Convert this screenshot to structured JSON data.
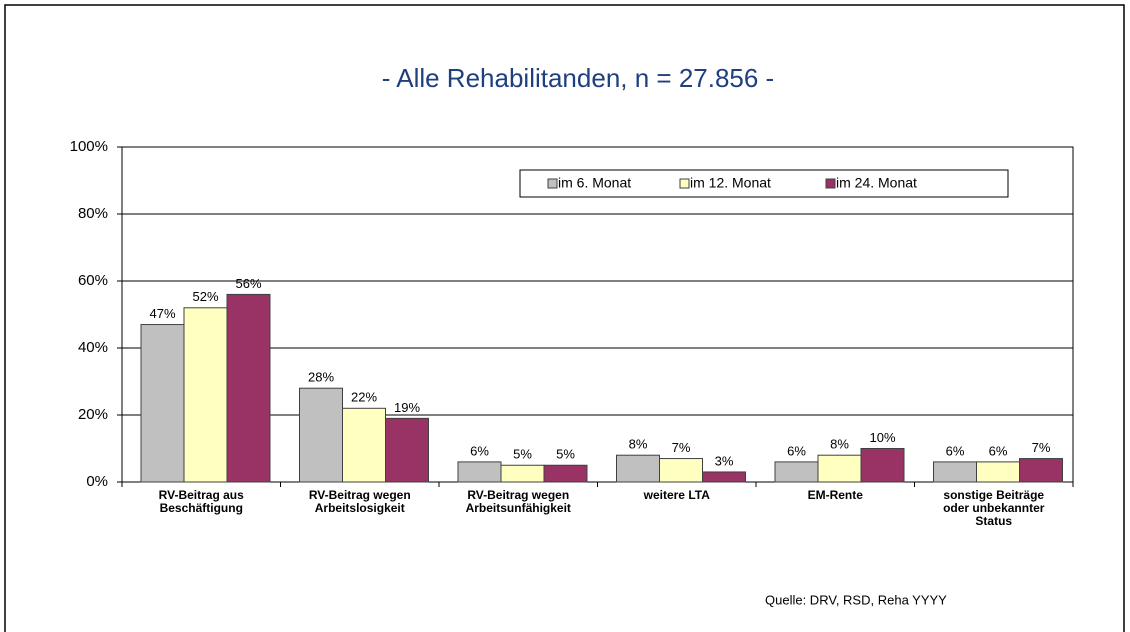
{
  "chart_data": {
    "type": "bar",
    "title": "- Alle Rehabilitanden, n = 27.856  -",
    "categories": [
      "RV-Beitrag aus\nBeschäftigung",
      "RV-Beitrag wegen\nArbeitslosigkeit",
      "RV-Beitrag wegen\nArbeitsunfähigkeit",
      "weitere LTA",
      "EM-Rente",
      "sonstige Beiträge\noder unbekannter\nStatus"
    ],
    "series": [
      {
        "name": "im 6. Monat",
        "color": "#c0c0c0",
        "values": [
          47,
          28,
          6,
          8,
          6,
          6
        ],
        "value_labels": [
          "47%",
          "28%",
          "6%",
          "8%",
          "6%",
          "6%"
        ]
      },
      {
        "name": "im 12. Monat",
        "color": "#ffffc0",
        "values": [
          52,
          22,
          5,
          7,
          8,
          6
        ],
        "value_labels": [
          "52%",
          "22%",
          "5%",
          "7%",
          "8%",
          "6%"
        ]
      },
      {
        "name": "im 24. Monat",
        "color": "#993366",
        "values": [
          56,
          19,
          5,
          3,
          10,
          7
        ],
        "value_labels": [
          "56%",
          "19%",
          "5%",
          "3%",
          "10%",
          "7%"
        ]
      }
    ],
    "ylim": [
      0,
      100
    ],
    "yticks": [
      {
        "value": 0,
        "label": "0%"
      },
      {
        "value": 20,
        "label": "20%"
      },
      {
        "value": 40,
        "label": "40%"
      },
      {
        "value": 60,
        "label": "60%"
      },
      {
        "value": 80,
        "label": "80%"
      },
      {
        "value": 100,
        "label": "100%"
      }
    ],
    "grid": true,
    "legend": "top-right",
    "source": "Quelle: DRV, RSD, Reha YYYY"
  }
}
